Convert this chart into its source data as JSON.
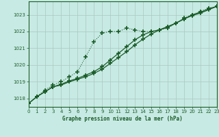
{
  "title": "Graphe pression niveau de la mer (hPa)",
  "bg_color": "#c8eae4",
  "line_color": "#1a5c28",
  "grid_color": "#a8c8c0",
  "x": [
    0,
    1,
    2,
    3,
    4,
    5,
    6,
    7,
    8,
    9,
    10,
    11,
    12,
    13,
    14,
    15,
    16,
    17,
    18,
    19,
    20,
    21,
    22,
    23
  ],
  "line1_dotted": [
    1017.7,
    1018.1,
    1018.5,
    1018.8,
    1019.0,
    1019.3,
    1019.6,
    1020.5,
    1021.4,
    1021.9,
    1022.0,
    1022.0,
    1022.2,
    1022.1,
    1022.0,
    1022.0,
    1022.1,
    1022.2,
    1022.5,
    1022.8,
    1023.0,
    1023.2,
    1023.4,
    1023.5
  ],
  "line2_solid": [
    1017.7,
    1018.1,
    1018.4,
    1018.7,
    1018.8,
    1019.0,
    1019.15,
    1019.3,
    1019.5,
    1019.75,
    1020.1,
    1020.45,
    1020.8,
    1021.2,
    1021.55,
    1021.85,
    1022.1,
    1022.3,
    1022.5,
    1022.75,
    1022.95,
    1023.1,
    1023.3,
    1023.5
  ],
  "line3_solid": [
    1017.7,
    1018.1,
    1018.4,
    1018.7,
    1018.85,
    1019.05,
    1019.2,
    1019.4,
    1019.6,
    1019.9,
    1020.3,
    1020.7,
    1021.1,
    1021.5,
    1021.8,
    1022.0,
    1022.1,
    1022.25,
    1022.5,
    1022.75,
    1023.0,
    1023.15,
    1023.35,
    1023.5
  ],
  "ylim": [
    1017.5,
    1023.8
  ],
  "yticks": [
    1018,
    1019,
    1020,
    1021,
    1022,
    1023
  ],
  "xlim": [
    0,
    23
  ],
  "xticks": [
    0,
    1,
    2,
    3,
    4,
    5,
    6,
    7,
    8,
    9,
    10,
    11,
    12,
    13,
    14,
    15,
    16,
    17,
    18,
    19,
    20,
    21,
    22,
    23
  ]
}
